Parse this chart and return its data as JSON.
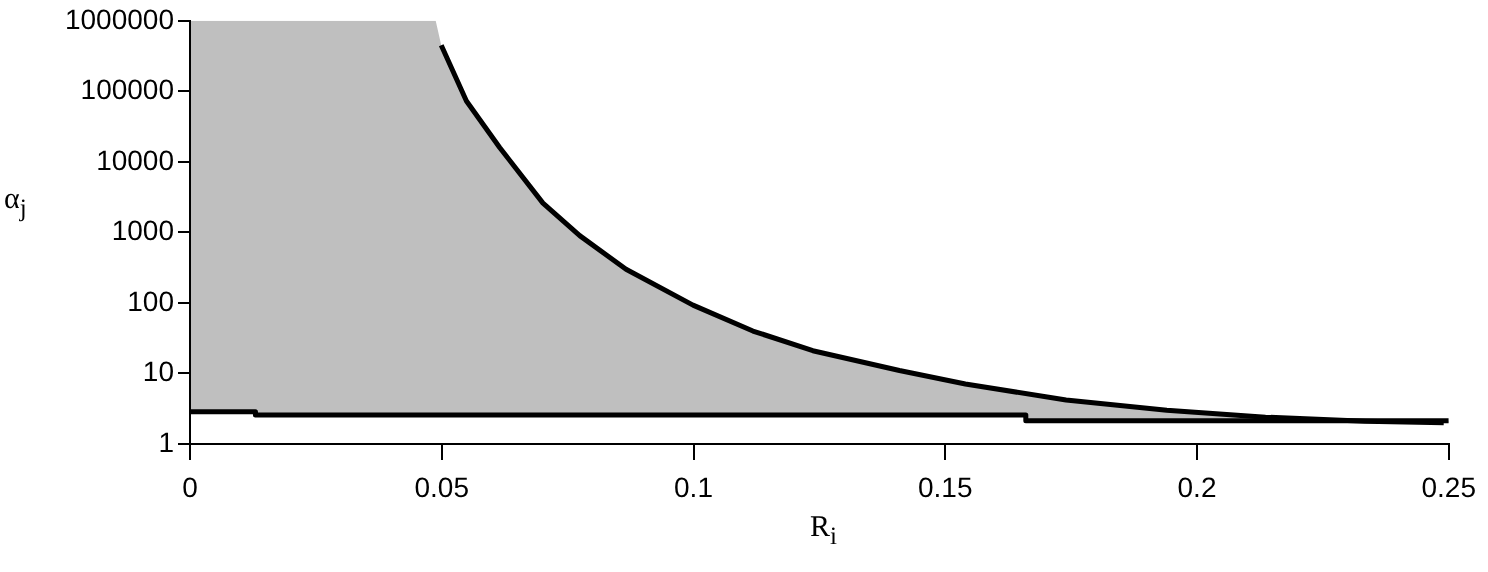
{
  "chart_data": {
    "type": "line",
    "xlabel": "R$_{i}$",
    "ylabel": "α$_{j}$",
    "log": "y",
    "grid": false,
    "legend": false,
    "marker": "none",
    "xlim": [
      0,
      0.25
    ],
    "xticks": [
      0,
      0.05,
      0.1,
      0.15,
      0.2,
      0.25
    ],
    "ylim": [
      1,
      1000000
    ],
    "yticks": [
      1,
      10,
      100,
      1000,
      10000,
      100000,
      1000000
    ],
    "series": [
      {
        "color": "#000000",
        "x": [
          0,
          0.013,
          0.013,
          0.0488,
          0.0499,
          0.0549,
          0.0615,
          0.0701,
          0.0774,
          0.0866,
          0.0999,
          0.1118,
          0.1237,
          0.1409,
          0.154,
          0.166,
          0.166,
          0.174,
          0.194,
          0.2136,
          0.2334,
          0.249,
          0.25
        ],
        "values": [
          2.86,
          2.86,
          2.58,
          2.58,
          2.58,
          2.58,
          2.58,
          2.58,
          2.58,
          2.58,
          2.58,
          2.58,
          2.58,
          2.58,
          2.58,
          2.58,
          2.13,
          2.13,
          2.13,
          2.13,
          2.13,
          2.13,
          2.13
        ],
        "lower": [
          2.86,
          2.86,
          2.58,
          2.58,
          2.58,
          2.58,
          2.58,
          2.58,
          2.58,
          2.58,
          2.58,
          2.58,
          2.58,
          2.58,
          2.58,
          2.58,
          2.13,
          2.13,
          2.13,
          2.13,
          2.13,
          2.13,
          2.13
        ],
        "upper": [
          1000000,
          1000000,
          1000000,
          1000000,
          450000,
          73000,
          16000,
          2600,
          900,
          300,
          93,
          40,
          21,
          11,
          7.1,
          5.2,
          5.2,
          4.2,
          3.0,
          2.4,
          2.1,
          2.0,
          2.0
        ]
      },
      {
        "color": "#000000",
        "x": [
          0.0499,
          0.0549,
          0.0615,
          0.0701,
          0.0774,
          0.0866,
          0.0999,
          0.1118,
          0.1237,
          0.1409,
          0.154,
          0.174,
          0.194,
          0.2136,
          0.2334,
          0.249
        ],
        "values": [
          450000,
          73000,
          16000,
          2600,
          900,
          300,
          93,
          40,
          21,
          11,
          7.1,
          4.2,
          3.0,
          2.4,
          2.1,
          2.0
        ]
      }
    ]
  }
}
